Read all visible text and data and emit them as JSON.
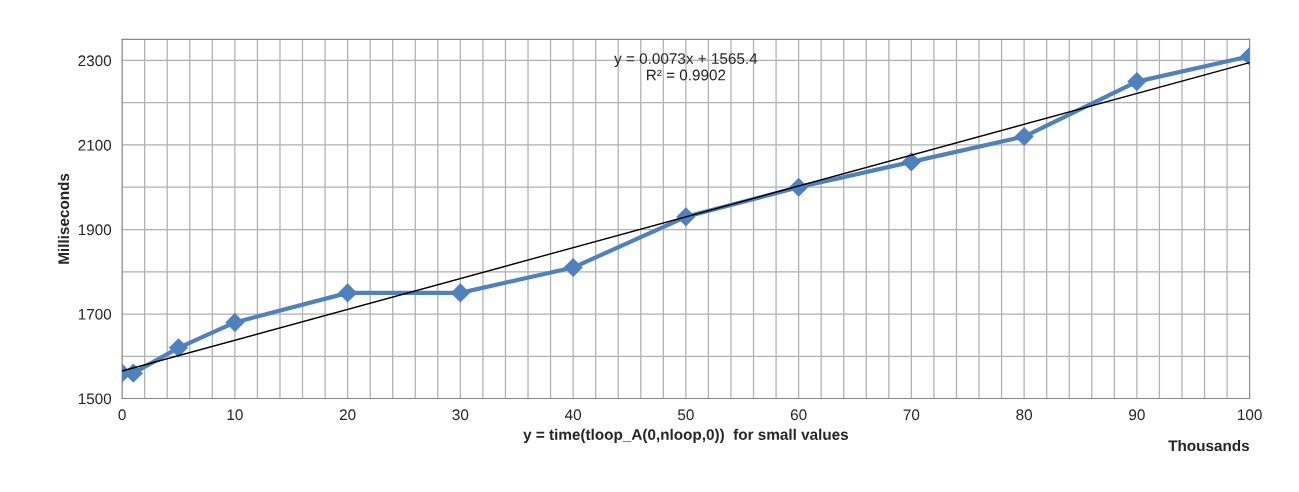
{
  "chart_data": {
    "type": "line",
    "xlabel": "y = time(tloop_A(0,nloop,0))  for small values",
    "ylabel": "Milliseconds",
    "xlim": [
      0,
      100
    ],
    "ylim": [
      1500,
      2350
    ],
    "xticks": [
      0,
      {
        "value": 2,
        "label": null
      },
      {
        "value": 4,
        "label": null
      },
      {
        "value": 6,
        "label": null
      },
      {
        "value": 8,
        "label": null
      },
      10,
      {
        "value": 12,
        "label": null
      },
      {
        "value": 14,
        "label": null
      },
      {
        "value": 16,
        "label": null
      },
      {
        "value": 18,
        "label": null
      },
      20,
      {
        "value": 22,
        "label": null
      },
      {
        "value": 24,
        "label": null
      },
      {
        "value": 26,
        "label": null
      },
      {
        "value": 28,
        "label": null
      },
      30,
      {
        "value": 32,
        "label": null
      },
      {
        "value": 34,
        "label": null
      },
      {
        "value": 36,
        "label": null
      },
      {
        "value": 38,
        "label": null
      },
      40,
      {
        "value": 42,
        "label": null
      },
      {
        "value": 44,
        "label": null
      },
      {
        "value": 46,
        "label": null
      },
      {
        "value": 48,
        "label": null
      },
      50,
      {
        "value": 52,
        "label": null
      },
      {
        "value": 54,
        "label": null
      },
      {
        "value": 56,
        "label": null
      },
      {
        "value": 58,
        "label": null
      },
      60,
      {
        "value": 62,
        "label": null
      },
      {
        "value": 64,
        "label": null
      },
      {
        "value": 66,
        "label": null
      },
      {
        "value": 68,
        "label": null
      },
      70,
      {
        "value": 72,
        "label": null
      },
      {
        "value": 74,
        "label": null
      },
      {
        "value": 76,
        "label": null
      },
      {
        "value": 78,
        "label": null
      },
      80,
      {
        "value": 82,
        "label": null
      },
      {
        "value": 84,
        "label": null
      },
      {
        "value": 86,
        "label": null
      },
      {
        "value": 88,
        "label": null
      },
      90,
      {
        "value": 92,
        "label": null
      },
      {
        "value": 94,
        "label": null
      },
      {
        "value": 96,
        "label": null
      },
      {
        "value": 98,
        "label": null
      },
      100
    ],
    "yticks": [
      1500,
      {
        "value": 1600,
        "label": null
      },
      1700,
      {
        "value": 1800,
        "label": null
      },
      1900,
      {
        "value": 2000,
        "label": null
      },
      2100,
      {
        "value": 2200,
        "label": null
      },
      2300
    ],
    "grid": true,
    "legend": false,
    "series": [
      {
        "color": "#4f81bd",
        "marker": "diamond",
        "x": [
          0,
          1,
          5,
          10,
          20,
          30,
          40,
          50,
          60,
          70,
          80,
          90,
          100
        ],
        "values": [
          1560,
          1560,
          1620,
          1680,
          1750,
          1750,
          1810,
          1930,
          2000,
          2060,
          2120,
          2250,
          2310
        ]
      },
      {
        "color": "#000000",
        "marker": "none",
        "x": [
          0,
          100
        ],
        "values": [
          1565,
          2295
        ]
      }
    ],
    "annotations": [
      "y = 0.0073x + 1565.4\nR² = 0.9902",
      "Thousands"
    ]
  }
}
